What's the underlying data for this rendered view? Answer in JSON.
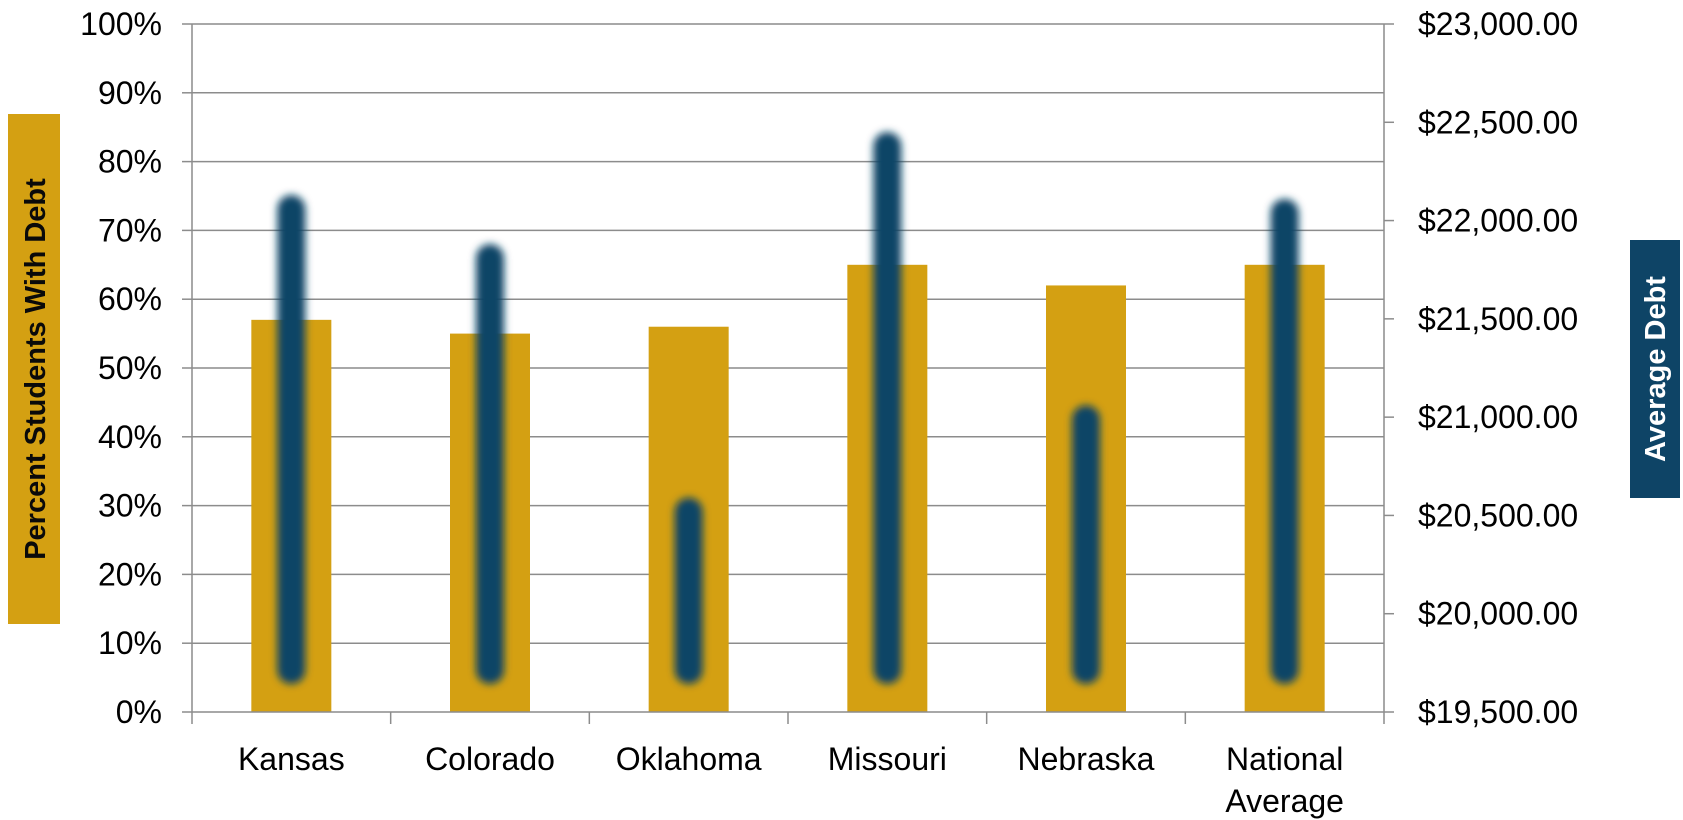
{
  "chart_data": {
    "type": "bar",
    "categories": [
      "Kansas",
      "Colorado",
      "Oklahoma",
      "Missouri",
      "Nebraska",
      "National Average"
    ],
    "series": [
      {
        "name": "Percent Students With Debt",
        "axis": "left",
        "style": "wide-bar",
        "color": "#D4A012",
        "values": [
          0.57,
          0.55,
          0.56,
          0.65,
          0.62,
          0.65
        ]
      },
      {
        "name": "Average Debt",
        "axis": "right",
        "style": "narrow-blurred-bar",
        "color": "#0E4466",
        "values": [
          22130,
          21880,
          20590,
          22450,
          21060,
          22110
        ]
      }
    ],
    "left_axis": {
      "title": "Percent Students With Debt",
      "title_bg": "#D4A012",
      "range": [
        0,
        1
      ],
      "ticks": [
        0,
        0.1,
        0.2,
        0.3,
        0.4,
        0.5,
        0.6,
        0.7,
        0.8,
        0.9,
        1.0
      ],
      "tick_labels": [
        "0%",
        "10%",
        "20%",
        "30%",
        "40%",
        "50%",
        "60%",
        "70%",
        "80%",
        "90%",
        "100%"
      ]
    },
    "right_axis": {
      "title": "Average Debt",
      "title_bg": "#0E4466",
      "range": [
        19500,
        23000
      ],
      "ticks": [
        19500,
        20000,
        20500,
        21000,
        21500,
        22000,
        22500,
        23000
      ],
      "tick_labels": [
        "$19,500.00",
        "$20,000.00",
        "$20,500.00",
        "$21,000.00",
        "$21,500.00",
        "$22,000.00",
        "$22,500.00",
        "$23,000.00"
      ]
    },
    "x_tick_labels": [
      [
        "Kansas"
      ],
      [
        "Colorado"
      ],
      [
        "Oklahoma"
      ],
      [
        "Missouri"
      ],
      [
        "Nebraska"
      ],
      [
        "National",
        "Average"
      ]
    ],
    "grid": true,
    "grid_color": "#8c8c8c",
    "legend": "none"
  }
}
